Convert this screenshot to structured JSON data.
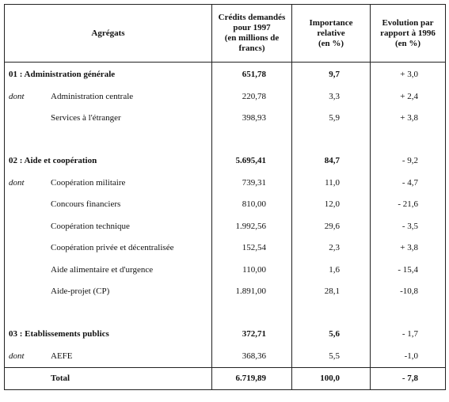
{
  "headers": {
    "aggregats": "Agrégats",
    "credits": [
      "Crédits demandés",
      "pour 1997",
      "(en millions de",
      "francs)"
    ],
    "importance": [
      "Importance",
      "relative",
      "(en %)"
    ],
    "evolution": [
      "Evolution par",
      "rapport à 1996",
      "(en %)"
    ]
  },
  "sections": [
    {
      "title": "01 : Administration générale",
      "credits": "651,78",
      "importance": "9,7",
      "evolution": "+ 3,0",
      "prefix": "dont",
      "items": [
        {
          "label": "Administration centrale",
          "credits": "220,78",
          "importance": "3,3",
          "evolution": "+ 2,4"
        },
        {
          "label": "Services à l'étranger",
          "credits": "398,93",
          "importance": "5,9",
          "evolution": "+ 3,8"
        }
      ]
    },
    {
      "title": "02 : Aide et coopération",
      "credits": "5.695,41",
      "importance": "84,7",
      "evolution": "- 9,2",
      "prefix": "dont",
      "items": [
        {
          "label": "Coopération militaire",
          "credits": "739,31",
          "importance": "11,0",
          "evolution": "- 4,7"
        },
        {
          "label": "Concours financiers",
          "credits": "810,00",
          "importance": "12,0",
          "evolution": "- 21,6"
        },
        {
          "label": "Coopération technique",
          "credits": "1.992,56",
          "importance": "29,6",
          "evolution": "- 3,5"
        },
        {
          "label": "Coopération privée et décentralisée",
          "credits": "152,54",
          "importance": "2,3",
          "evolution": "+ 3,8"
        },
        {
          "label": "Aide alimentaire et d'urgence",
          "credits": "110,00",
          "importance": "1,6",
          "evolution": "- 15,4"
        },
        {
          "label": "Aide-projet (CP)",
          "credits": "1.891,00",
          "importance": "28,1",
          "evolution": "-10,8"
        }
      ]
    },
    {
      "title": "03 : Etablissements publics",
      "credits": "372,71",
      "importance": "5,6",
      "evolution": "- 1,7",
      "prefix": "dont",
      "items": [
        {
          "label": "AEFE",
          "credits": "368,36",
          "importance": "5,5",
          "evolution": "-1,0"
        }
      ]
    }
  ],
  "total": {
    "label": "Total",
    "credits": "6.719,89",
    "importance": "100,0",
    "evolution": "- 7,8"
  }
}
